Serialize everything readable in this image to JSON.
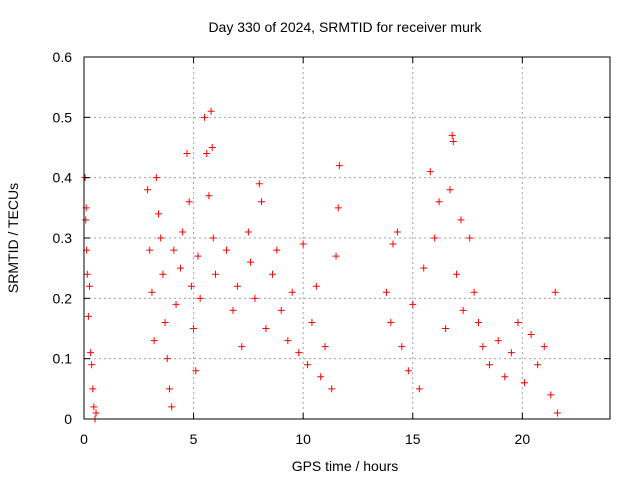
{
  "chart_data": {
    "type": "scatter",
    "title": "Day 330 of 2024, SRMTID for receiver murk",
    "xlabel": "GPS time / hours",
    "ylabel": "SRMTID / TECUs",
    "xlim": [
      0,
      24
    ],
    "ylim": [
      0,
      0.6
    ],
    "x_ticks": [
      0,
      5,
      10,
      15,
      20
    ],
    "x_tick_labels": [
      "0",
      "5",
      "10",
      "15",
      "20"
    ],
    "y_ticks": [
      0,
      0.1,
      0.2,
      0.3,
      0.4,
      0.5,
      0.6
    ],
    "y_tick_labels": [
      "0",
      "0.1",
      "0.2",
      "0.3",
      "0.4",
      "0.5",
      "0.6"
    ],
    "grid": true,
    "marker": "+",
    "colors": {
      "points": "#ff0000",
      "grid": "#a0a0a0",
      "frame": "#000000"
    },
    "series": [
      {
        "values": [
          [
            0.05,
            0.4
          ],
          [
            0.08,
            0.33
          ],
          [
            0.1,
            0.35
          ],
          [
            0.12,
            0.28
          ],
          [
            0.15,
            0.24
          ],
          [
            0.2,
            0.17
          ],
          [
            0.25,
            0.22
          ],
          [
            0.3,
            0.11
          ],
          [
            0.35,
            0.09
          ],
          [
            0.4,
            0.05
          ],
          [
            0.45,
            0.02
          ],
          [
            0.5,
            0.0
          ],
          [
            0.55,
            0.01
          ],
          [
            2.9,
            0.38
          ],
          [
            3.0,
            0.28
          ],
          [
            3.1,
            0.21
          ],
          [
            3.2,
            0.13
          ],
          [
            3.3,
            0.4
          ],
          [
            3.4,
            0.34
          ],
          [
            3.5,
            0.3
          ],
          [
            3.6,
            0.24
          ],
          [
            3.7,
            0.16
          ],
          [
            3.8,
            0.1
          ],
          [
            3.9,
            0.05
          ],
          [
            4.0,
            0.02
          ],
          [
            4.1,
            0.28
          ],
          [
            4.2,
            0.19
          ],
          [
            4.4,
            0.25
          ],
          [
            4.5,
            0.31
          ],
          [
            4.7,
            0.44
          ],
          [
            4.8,
            0.36
          ],
          [
            4.9,
            0.22
          ],
          [
            5.0,
            0.15
          ],
          [
            5.1,
            0.08
          ],
          [
            5.2,
            0.27
          ],
          [
            5.3,
            0.2
          ],
          [
            5.5,
            0.5
          ],
          [
            5.6,
            0.44
          ],
          [
            5.7,
            0.37
          ],
          [
            5.8,
            0.51
          ],
          [
            5.85,
            0.45
          ],
          [
            5.9,
            0.3
          ],
          [
            6.0,
            0.24
          ],
          [
            6.5,
            0.28
          ],
          [
            6.8,
            0.18
          ],
          [
            7.0,
            0.22
          ],
          [
            7.2,
            0.12
          ],
          [
            7.5,
            0.31
          ],
          [
            7.6,
            0.26
          ],
          [
            7.8,
            0.2
          ],
          [
            8.0,
            0.39
          ],
          [
            8.1,
            0.36
          ],
          [
            8.3,
            0.15
          ],
          [
            8.6,
            0.24
          ],
          [
            8.8,
            0.28
          ],
          [
            9.0,
            0.18
          ],
          [
            9.3,
            0.13
          ],
          [
            9.5,
            0.21
          ],
          [
            9.8,
            0.11
          ],
          [
            10.0,
            0.29
          ],
          [
            10.2,
            0.09
          ],
          [
            10.4,
            0.16
          ],
          [
            10.6,
            0.22
          ],
          [
            10.8,
            0.07
          ],
          [
            11.0,
            0.12
          ],
          [
            11.3,
            0.05
          ],
          [
            11.5,
            0.27
          ],
          [
            11.6,
            0.35
          ],
          [
            11.65,
            0.42
          ],
          [
            13.8,
            0.21
          ],
          [
            14.0,
            0.16
          ],
          [
            14.1,
            0.29
          ],
          [
            14.3,
            0.31
          ],
          [
            14.5,
            0.12
          ],
          [
            14.8,
            0.08
          ],
          [
            15.0,
            0.19
          ],
          [
            15.3,
            0.05
          ],
          [
            15.5,
            0.25
          ],
          [
            15.8,
            0.41
          ],
          [
            16.0,
            0.3
          ],
          [
            16.2,
            0.36
          ],
          [
            16.5,
            0.15
          ],
          [
            16.7,
            0.38
          ],
          [
            16.8,
            0.47
          ],
          [
            16.85,
            0.46
          ],
          [
            17.0,
            0.24
          ],
          [
            17.2,
            0.33
          ],
          [
            17.3,
            0.18
          ],
          [
            17.6,
            0.3
          ],
          [
            17.8,
            0.21
          ],
          [
            18.0,
            0.16
          ],
          [
            18.2,
            0.12
          ],
          [
            18.5,
            0.09
          ],
          [
            18.9,
            0.13
          ],
          [
            19.2,
            0.07
          ],
          [
            19.5,
            0.11
          ],
          [
            19.8,
            0.16
          ],
          [
            20.1,
            0.06
          ],
          [
            20.4,
            0.14
          ],
          [
            20.7,
            0.09
          ],
          [
            21.0,
            0.12
          ],
          [
            21.3,
            0.04
          ],
          [
            21.5,
            0.21
          ],
          [
            21.6,
            0.01
          ]
        ]
      }
    ]
  }
}
